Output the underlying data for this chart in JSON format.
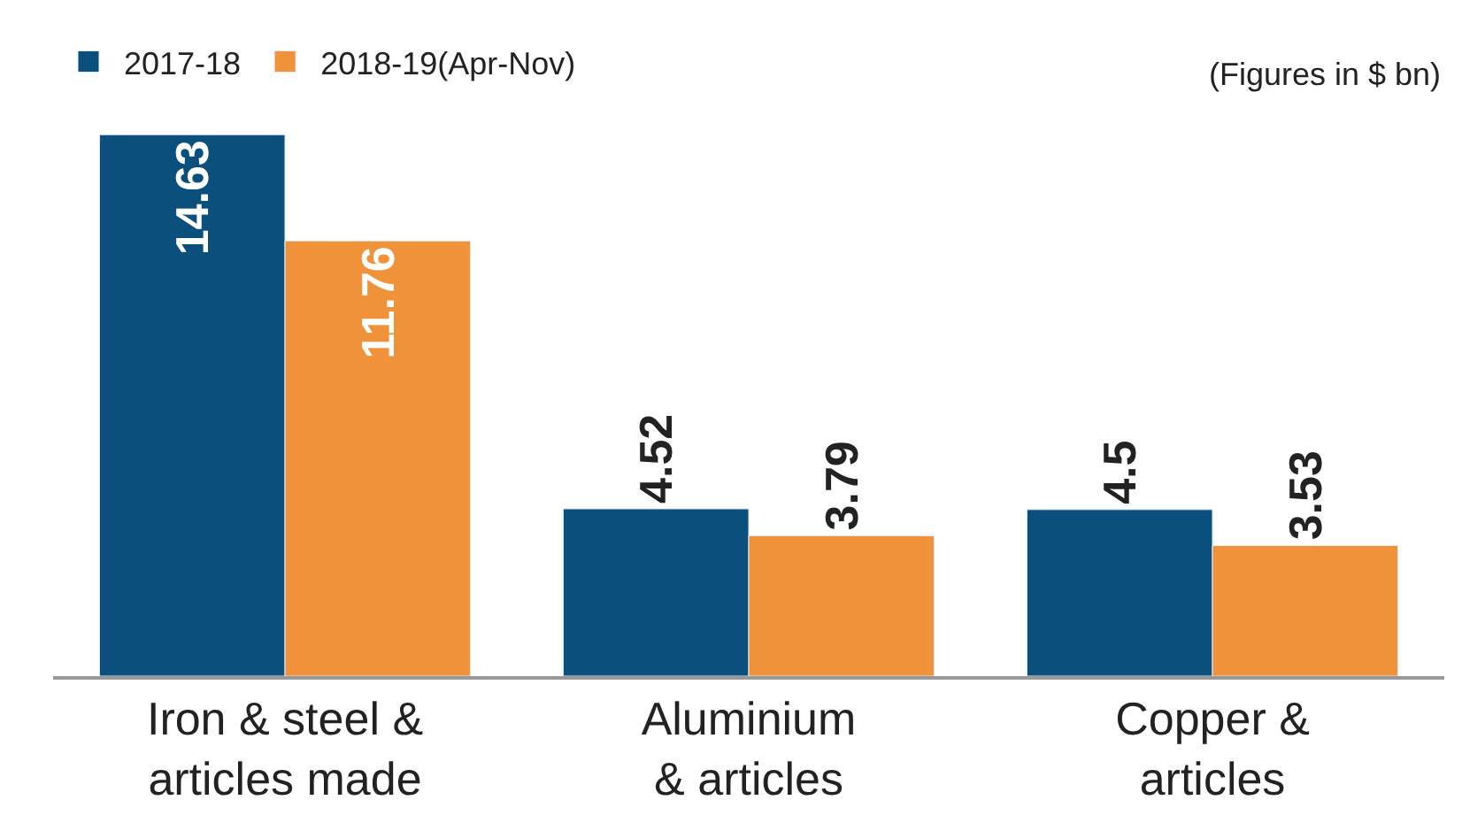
{
  "chart_data": {
    "type": "bar",
    "categories": [
      "Iron & steel &\narticles made",
      "Aluminium\n& articles",
      "Copper &\narticles"
    ],
    "series": [
      {
        "name": "2017-18",
        "color": "#0b4f7c",
        "values": [
          14.63,
          4.52,
          4.5
        ]
      },
      {
        "name": "2018-19(Apr-Nov)",
        "color": "#f0923a",
        "values": [
          11.76,
          3.79,
          3.53
        ]
      }
    ],
    "data_labels": true,
    "legend": "top left",
    "annotations": [
      "(Figures in $ bn)"
    ]
  }
}
